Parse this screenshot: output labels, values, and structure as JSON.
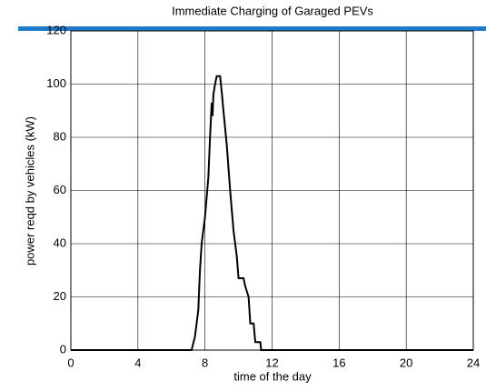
{
  "chart_data": {
    "type": "line",
    "title": "Immediate Charging of Garaged PEVs",
    "x_label": "time of the day",
    "y_label": "power reqd by vehicles (kW)",
    "x": [
      0,
      7.2,
      7.4,
      7.6,
      7.7,
      7.8,
      8.0,
      8.2,
      8.3,
      8.4,
      8.45,
      8.5,
      8.6,
      8.7,
      8.9,
      9.0,
      9.1,
      9.3,
      9.5,
      9.7,
      9.9,
      10.0,
      10.3,
      10.4,
      10.6,
      10.7,
      10.9,
      11.0,
      11.3,
      11.35,
      24
    ],
    "series": [
      {
        "name": "power",
        "color": "#000000",
        "values": [
          0,
          0,
          5,
          15,
          30,
          40,
          50,
          65,
          80,
          93,
          88,
          96,
          100,
          103,
          103,
          97,
          90,
          77,
          60,
          45,
          35,
          27,
          27,
          24,
          20,
          10,
          10,
          3,
          3,
          0,
          0
        ]
      }
    ],
    "xlim": [
      0,
      24
    ],
    "xticks": [
      0,
      4,
      8,
      12,
      16,
      20,
      24
    ],
    "ylim": [
      0,
      120
    ],
    "yticks": [
      0,
      20,
      40,
      60,
      80,
      100,
      120
    ],
    "grid": true
  }
}
